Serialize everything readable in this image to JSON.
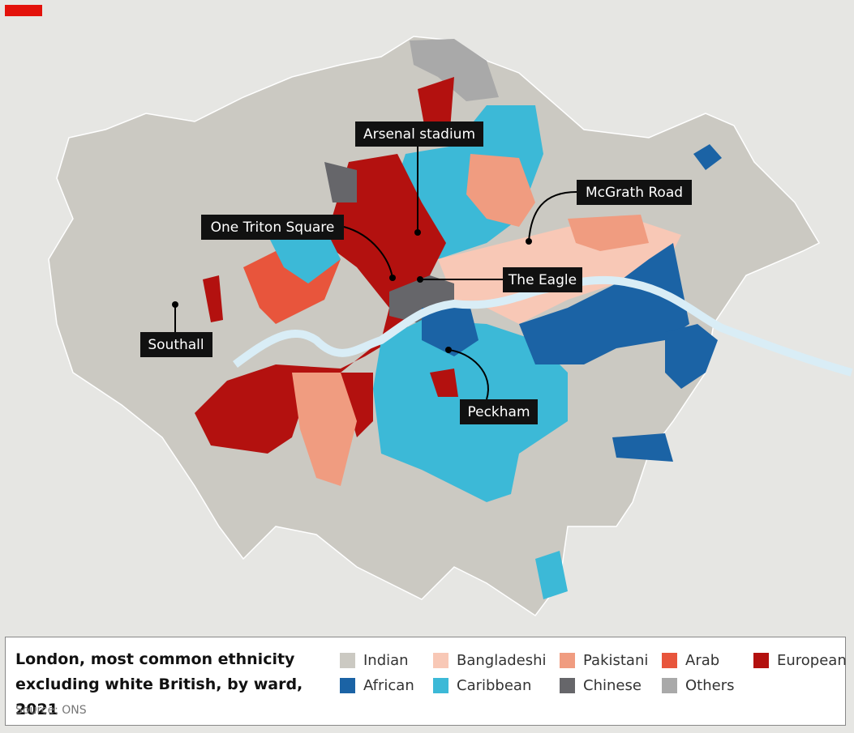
{
  "title": "London, most common ethnicity excluding white British, by ward, 2021",
  "source": "Source: ONS",
  "legend": [
    {
      "name": "Indian",
      "color": "#cbc9c2"
    },
    {
      "name": "Bangladeshi",
      "color": "#f8c8b6"
    },
    {
      "name": "Pakistani",
      "color": "#f09c80"
    },
    {
      "name": "Arab",
      "color": "#e8553c"
    },
    {
      "name": "European",
      "color": "#b3110f"
    },
    {
      "name": "African",
      "color": "#1b63a5"
    },
    {
      "name": "Caribbean",
      "color": "#3cb9d7"
    },
    {
      "name": "Chinese",
      "color": "#66666a"
    },
    {
      "name": "Others",
      "color": "#a9a9a9"
    }
  ],
  "annotations": [
    {
      "label": "Arsenal stadium"
    },
    {
      "label": "McGrath Road"
    },
    {
      "label": "One Triton Square"
    },
    {
      "label": "The Eagle"
    },
    {
      "label": "Southall"
    },
    {
      "label": "Peckham"
    }
  ]
}
